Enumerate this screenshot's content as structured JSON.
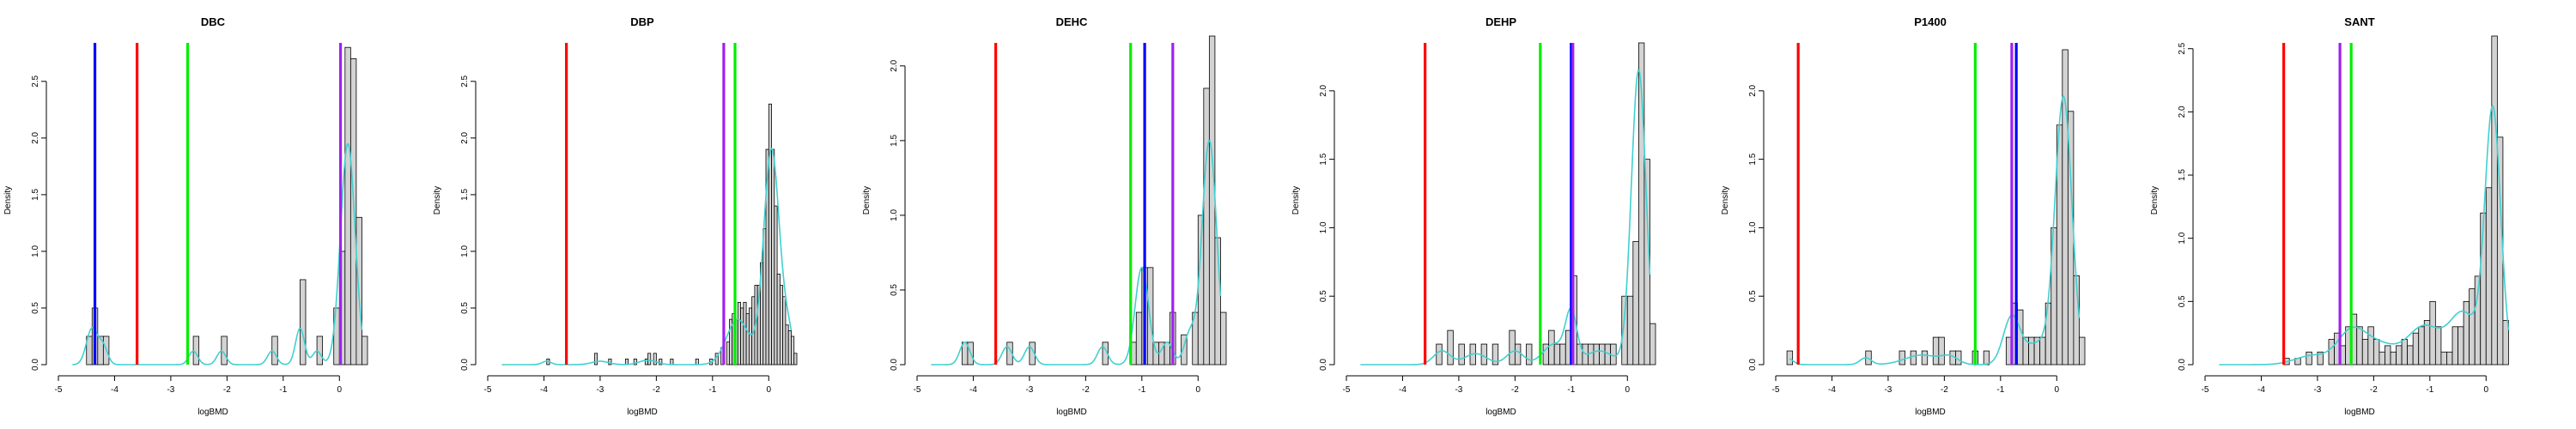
{
  "colors": {
    "red": "#ff0000",
    "green": "#00ee00",
    "blue": "#0000ff",
    "purple": "#a020f0",
    "density": "#40d0d0",
    "bar_fill": "#d3d3d3",
    "bar_edge": "#000000"
  },
  "chart_data": [
    {
      "type": "bar",
      "title": "DBC",
      "xlabel": "logBMD",
      "ylabel": "Density",
      "xlim": [
        -5,
        0.5
      ],
      "ylim": [
        0,
        2.9
      ],
      "x_ticks": [
        "-5",
        "-4",
        "-3",
        "-2",
        "-1",
        "0"
      ],
      "y_ticks": [
        "0.0",
        "0.5",
        "1.0",
        "1.5",
        "2.0",
        "2.5"
      ],
      "bin_width": 0.1,
      "histogram": [
        [
          -4.5,
          0.25
        ],
        [
          -4.4,
          0.5
        ],
        [
          -4.3,
          0.25
        ],
        [
          -4.2,
          0.25
        ],
        [
          -2.6,
          0.25
        ],
        [
          -2.1,
          0.25
        ],
        [
          -1.2,
          0.25
        ],
        [
          -0.7,
          0.75
        ],
        [
          -0.4,
          0.25
        ],
        [
          -0.1,
          0.5
        ],
        [
          0.0,
          1.0
        ],
        [
          0.1,
          2.8
        ],
        [
          0.2,
          2.7
        ],
        [
          0.3,
          1.3
        ],
        [
          0.4,
          0.25
        ]
      ],
      "vlines": [
        {
          "x": -4.35,
          "color": "blue"
        },
        {
          "x": -3.6,
          "color": "red"
        },
        {
          "x": -2.7,
          "color": "green"
        },
        {
          "x": 0.02,
          "color": "purple"
        }
      ],
      "density_peaks": [
        [
          -4.4,
          0.32,
          0.1
        ],
        [
          -4.2,
          0.15,
          0.08
        ],
        [
          -2.6,
          0.12,
          0.08
        ],
        [
          -2.1,
          0.12,
          0.08
        ],
        [
          -1.2,
          0.12,
          0.08
        ],
        [
          -0.7,
          0.32,
          0.08
        ],
        [
          -0.4,
          0.12,
          0.08
        ],
        [
          0.15,
          1.95,
          0.13
        ]
      ]
    },
    {
      "type": "bar",
      "title": "DBP",
      "xlabel": "logBMD",
      "ylabel": "Density",
      "xlim": [
        -5,
        0.5
      ],
      "ylim": [
        0,
        2.9
      ],
      "x_ticks": [
        "-5",
        "-4",
        "-3",
        "-2",
        "-1",
        "0"
      ],
      "y_ticks": [
        "0.0",
        "0.5",
        "1.0",
        "1.5",
        "2.0",
        "2.5"
      ],
      "bin_width": 0.05,
      "histogram": [
        [
          -3.95,
          0.05
        ],
        [
          -3.1,
          0.1
        ],
        [
          -2.85,
          0.05
        ],
        [
          -2.55,
          0.05
        ],
        [
          -2.4,
          0.05
        ],
        [
          -2.2,
          0.05
        ],
        [
          -2.15,
          0.1
        ],
        [
          -2.05,
          0.1
        ],
        [
          -1.95,
          0.05
        ],
        [
          -1.75,
          0.05
        ],
        [
          -1.3,
          0.05
        ],
        [
          -1.05,
          0.05
        ],
        [
          -0.95,
          0.1
        ],
        [
          -0.85,
          0.15
        ],
        [
          -0.75,
          0.2
        ],
        [
          -0.7,
          0.4
        ],
        [
          -0.65,
          0.45
        ],
        [
          -0.6,
          0.4
        ],
        [
          -0.55,
          0.55
        ],
        [
          -0.5,
          0.5
        ],
        [
          -0.45,
          0.55
        ],
        [
          -0.4,
          0.45
        ],
        [
          -0.35,
          0.5
        ],
        [
          -0.3,
          0.6
        ],
        [
          -0.25,
          0.7
        ],
        [
          -0.2,
          0.7
        ],
        [
          -0.15,
          0.9
        ],
        [
          -0.1,
          1.2
        ],
        [
          -0.05,
          1.9
        ],
        [
          0.0,
          2.3
        ],
        [
          0.05,
          1.9
        ],
        [
          0.1,
          1.4
        ],
        [
          0.15,
          0.8
        ],
        [
          0.2,
          0.7
        ],
        [
          0.25,
          0.6
        ],
        [
          0.3,
          0.35
        ],
        [
          0.35,
          0.3
        ],
        [
          0.4,
          0.25
        ],
        [
          0.45,
          0.1
        ]
      ],
      "vlines": [
        {
          "x": -3.6,
          "color": "red"
        },
        {
          "x": -0.8,
          "color": "purple"
        },
        {
          "x": -0.6,
          "color": "green"
        }
      ],
      "density_peaks": [
        [
          -3.95,
          0.03,
          0.08
        ],
        [
          -3.0,
          0.03,
          0.15
        ],
        [
          -2.15,
          0.04,
          0.15
        ],
        [
          -0.55,
          0.4,
          0.2
        ],
        [
          0.05,
          1.9,
          0.14
        ],
        [
          0.35,
          0.25,
          0.1
        ]
      ]
    },
    {
      "type": "bar",
      "title": "DEHC",
      "xlabel": "logBMD",
      "ylabel": "Density",
      "xlim": [
        -5,
        0.5
      ],
      "ylim": [
        0,
        2.2
      ],
      "x_ticks": [
        "-5",
        "-4",
        "-3",
        "-2",
        "-1",
        "0"
      ],
      "y_ticks": [
        "0.0",
        "0.5",
        "1.0",
        "1.5",
        "2.0"
      ],
      "bin_width": 0.1,
      "histogram": [
        [
          -4.2,
          0.15
        ],
        [
          -4.1,
          0.15
        ],
        [
          -3.4,
          0.15
        ],
        [
          -3.0,
          0.15
        ],
        [
          -1.7,
          0.15
        ],
        [
          -1.2,
          0.15
        ],
        [
          -1.1,
          0.35
        ],
        [
          -1.0,
          0.65
        ],
        [
          -0.9,
          0.65
        ],
        [
          -0.8,
          0.15
        ],
        [
          -0.7,
          0.15
        ],
        [
          -0.6,
          0.15
        ],
        [
          -0.5,
          0.35
        ],
        [
          -0.3,
          0.2
        ],
        [
          -0.1,
          0.35
        ],
        [
          0.0,
          1.0
        ],
        [
          0.1,
          1.85
        ],
        [
          0.2,
          2.2
        ],
        [
          0.3,
          0.85
        ],
        [
          0.4,
          0.35
        ]
      ],
      "vlines": [
        {
          "x": -3.6,
          "color": "red"
        },
        {
          "x": -1.2,
          "color": "green"
        },
        {
          "x": -0.95,
          "color": "blue"
        },
        {
          "x": -0.45,
          "color": "purple"
        }
      ],
      "density_peaks": [
        [
          -4.15,
          0.15,
          0.09
        ],
        [
          -3.4,
          0.12,
          0.09
        ],
        [
          -3.0,
          0.12,
          0.09
        ],
        [
          -1.7,
          0.12,
          0.09
        ],
        [
          -1.0,
          0.65,
          0.12
        ],
        [
          -0.55,
          0.15,
          0.1
        ],
        [
          -0.15,
          0.2,
          0.1
        ],
        [
          0.2,
          1.5,
          0.13
        ]
      ]
    },
    {
      "type": "bar",
      "title": "DEHP",
      "xlabel": "logBMD",
      "ylabel": "Density",
      "xlim": [
        -5,
        0.5
      ],
      "ylim": [
        0,
        2.4
      ],
      "x_ticks": [
        "-5",
        "-4",
        "-3",
        "-2",
        "-1",
        "0"
      ],
      "y_ticks": [
        "0.0",
        "0.5",
        "1.0",
        "1.5",
        "2.0"
      ],
      "bin_width": 0.1,
      "histogram": [
        [
          -3.4,
          0.15
        ],
        [
          -3.2,
          0.25
        ],
        [
          -3.0,
          0.15
        ],
        [
          -2.8,
          0.15
        ],
        [
          -2.6,
          0.15
        ],
        [
          -2.4,
          0.15
        ],
        [
          -2.1,
          0.25
        ],
        [
          -2.0,
          0.15
        ],
        [
          -1.8,
          0.15
        ],
        [
          -1.5,
          0.15
        ],
        [
          -1.4,
          0.25
        ],
        [
          -1.3,
          0.15
        ],
        [
          -1.2,
          0.15
        ],
        [
          -1.1,
          0.25
        ],
        [
          -1.0,
          0.65
        ],
        [
          -0.9,
          0.15
        ],
        [
          -0.8,
          0.15
        ],
        [
          -0.7,
          0.15
        ],
        [
          -0.6,
          0.15
        ],
        [
          -0.5,
          0.15
        ],
        [
          -0.4,
          0.15
        ],
        [
          -0.3,
          0.15
        ],
        [
          -0.1,
          0.5
        ],
        [
          0.0,
          0.5
        ],
        [
          0.1,
          0.9
        ],
        [
          0.2,
          2.35
        ],
        [
          0.3,
          1.5
        ],
        [
          0.4,
          0.3
        ]
      ],
      "vlines": [
        {
          "x": -3.6,
          "color": "red"
        },
        {
          "x": -1.55,
          "color": "green"
        },
        {
          "x": -1.0,
          "color": "blue"
        },
        {
          "x": -0.97,
          "color": "purple"
        }
      ],
      "density_peaks": [
        [
          -3.3,
          0.1,
          0.15
        ],
        [
          -2.7,
          0.08,
          0.2
        ],
        [
          -2.0,
          0.1,
          0.15
        ],
        [
          -1.3,
          0.15,
          0.2
        ],
        [
          -1.0,
          0.35,
          0.1
        ],
        [
          -0.5,
          0.1,
          0.25
        ],
        [
          0.2,
          2.15,
          0.13
        ]
      ]
    },
    {
      "type": "bar",
      "title": "P1400",
      "xlabel": "logBMD",
      "ylabel": "Density",
      "xlim": [
        -5,
        0.5
      ],
      "ylim": [
        0,
        2.4
      ],
      "x_ticks": [
        "-5",
        "-4",
        "-3",
        "-2",
        "-1",
        "0"
      ],
      "y_ticks": [
        "0.0",
        "0.5",
        "1.0",
        "1.5",
        "2.0"
      ],
      "bin_width": 0.1,
      "histogram": [
        [
          -4.8,
          0.1
        ],
        [
          -3.4,
          0.1
        ],
        [
          -2.8,
          0.1
        ],
        [
          -2.6,
          0.1
        ],
        [
          -2.4,
          0.1
        ],
        [
          -2.2,
          0.2
        ],
        [
          -2.1,
          0.2
        ],
        [
          -1.9,
          0.1
        ],
        [
          -1.8,
          0.1
        ],
        [
          -1.5,
          0.1
        ],
        [
          -1.3,
          0.1
        ],
        [
          -0.9,
          0.2
        ],
        [
          -0.8,
          0.45
        ],
        [
          -0.7,
          0.4
        ],
        [
          -0.6,
          0.2
        ],
        [
          -0.5,
          0.2
        ],
        [
          -0.4,
          0.2
        ],
        [
          -0.3,
          0.2
        ],
        [
          -0.2,
          0.45
        ],
        [
          -0.1,
          1.0
        ],
        [
          0.0,
          1.75
        ],
        [
          0.1,
          2.3
        ],
        [
          0.2,
          1.85
        ],
        [
          0.3,
          0.65
        ],
        [
          0.4,
          0.2
        ]
      ],
      "vlines": [
        {
          "x": -4.6,
          "color": "red"
        },
        {
          "x": -1.45,
          "color": "green"
        },
        {
          "x": -0.8,
          "color": "purple"
        },
        {
          "x": -0.72,
          "color": "blue"
        }
      ],
      "density_peaks": [
        [
          -4.8,
          0.05,
          0.1
        ],
        [
          -3.4,
          0.05,
          0.1
        ],
        [
          -2.4,
          0.07,
          0.3
        ],
        [
          -1.9,
          0.05,
          0.15
        ],
        [
          -0.8,
          0.35,
          0.15
        ],
        [
          -0.35,
          0.15,
          0.2
        ],
        [
          0.12,
          1.95,
          0.15
        ]
      ]
    },
    {
      "type": "bar",
      "title": "SANT",
      "xlabel": "logBMD",
      "ylabel": "Density",
      "xlim": [
        -5,
        0.5
      ],
      "ylim": [
        0,
        2.6
      ],
      "x_ticks": [
        "-5",
        "-4",
        "-3",
        "-2",
        "-1",
        "0"
      ],
      "y_ticks": [
        "0.0",
        "0.5",
        "1.0",
        "1.5",
        "2.0",
        "2.5"
      ],
      "bin_width": 0.1,
      "histogram": [
        [
          -3.6,
          0.05
        ],
        [
          -3.4,
          0.05
        ],
        [
          -3.2,
          0.1
        ],
        [
          -3.0,
          0.1
        ],
        [
          -2.8,
          0.2
        ],
        [
          -2.7,
          0.25
        ],
        [
          -2.6,
          0.15
        ],
        [
          -2.5,
          0.3
        ],
        [
          -2.4,
          0.4
        ],
        [
          -2.3,
          0.3
        ],
        [
          -2.2,
          0.2
        ],
        [
          -2.1,
          0.3
        ],
        [
          -2.0,
          0.2
        ],
        [
          -1.9,
          0.1
        ],
        [
          -1.8,
          0.15
        ],
        [
          -1.7,
          0.1
        ],
        [
          -1.6,
          0.15
        ],
        [
          -1.5,
          0.2
        ],
        [
          -1.4,
          0.15
        ],
        [
          -1.3,
          0.25
        ],
        [
          -1.2,
          0.3
        ],
        [
          -1.1,
          0.35
        ],
        [
          -1.0,
          0.5
        ],
        [
          -0.9,
          0.3
        ],
        [
          -0.8,
          0.1
        ],
        [
          -0.7,
          0.1
        ],
        [
          -0.6,
          0.3
        ],
        [
          -0.5,
          0.3
        ],
        [
          -0.4,
          0.5
        ],
        [
          -0.3,
          0.6
        ],
        [
          -0.2,
          0.7
        ],
        [
          -0.1,
          1.2
        ],
        [
          0.0,
          1.4
        ],
        [
          0.1,
          2.6
        ],
        [
          0.2,
          1.8
        ],
        [
          0.3,
          0.35
        ]
      ],
      "vlines": [
        {
          "x": -3.6,
          "color": "red"
        },
        {
          "x": -2.6,
          "color": "purple"
        },
        {
          "x": -2.4,
          "color": "green"
        }
      ],
      "density_peaks": [
        [
          -3.1,
          0.07,
          0.3
        ],
        [
          -2.4,
          0.25,
          0.25
        ],
        [
          -1.9,
          0.15,
          0.3
        ],
        [
          -1.1,
          0.3,
          0.3
        ],
        [
          -0.4,
          0.4,
          0.25
        ],
        [
          0.12,
          2.0,
          0.14
        ]
      ]
    }
  ]
}
